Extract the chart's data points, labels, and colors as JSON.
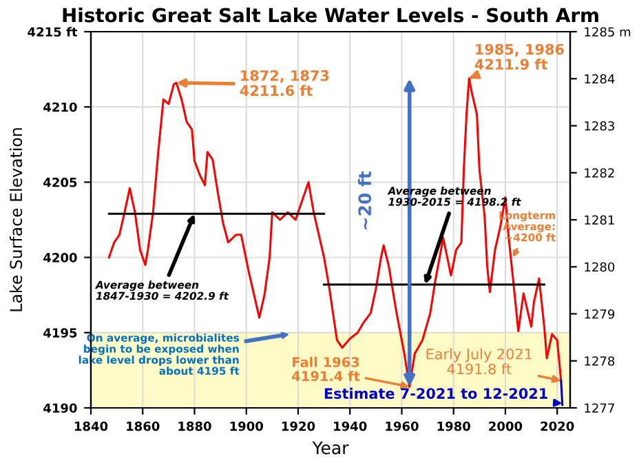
{
  "chart_data": {
    "type": "line",
    "title": "Historic Great Salt Lake Water Levels - South Arm",
    "xlabel": "Year",
    "ylabel": "Lake Surface Elevation",
    "xlim": [
      1840,
      2025
    ],
    "xticks": [
      1840,
      1860,
      1880,
      1900,
      1920,
      1940,
      1960,
      1980,
      2000,
      2020
    ],
    "ylim": [
      4190,
      4215
    ],
    "yticks": [
      4190,
      4195,
      4200,
      4205,
      4210,
      {
        "value": 4215,
        "label": "4215 ft"
      }
    ],
    "y2lim": [
      1277,
      1285
    ],
    "y2ticks": [
      1277,
      1278,
      1279,
      1280,
      1281,
      1282,
      1283,
      1284,
      {
        "value": 1285,
        "label": "1285 m"
      }
    ],
    "grid": true,
    "series": [
      {
        "color": "#ff0000",
        "x": [
          1847,
          1849,
          1851,
          1853,
          1855,
          1857,
          1859,
          1861,
          1862,
          1864,
          1866,
          1868,
          1870,
          1872,
          1873,
          1875,
          1877,
          1879,
          1880,
          1882,
          1884,
          1885,
          1887,
          1889,
          1891,
          1893,
          1896,
          1898,
          1901,
          1903,
          1905,
          1907,
          1909,
          1910,
          1913,
          1916,
          1919,
          1922,
          1924,
          1926,
          1928,
          1930,
          1932,
          1935,
          1937,
          1940,
          1943,
          1945,
          1948,
          1950,
          1952,
          1953,
          1955,
          1958,
          1961,
          1963,
          1965,
          1968,
          1971,
          1973,
          1976,
          1979,
          1981,
          1983,
          1984,
          1985,
          1986,
          1987,
          1989,
          1990,
          1992,
          1993,
          1994,
          1996,
          1998,
          2000,
          2001,
          2003,
          2005,
          2007,
          2010,
          2011,
          2013,
          2015,
          2016,
          2018,
          2020,
          2021.5
        ],
        "values": [
          4200,
          4201,
          4201.5,
          4203,
          4204.6,
          4203,
          4200.5,
          4199.5,
          4200.5,
          4203,
          4207,
          4210.5,
          4210.2,
          4211.5,
          4211.6,
          4210.5,
          4209,
          4208.5,
          4206.4,
          4205.5,
          4204.8,
          4207,
          4206.5,
          4204.3,
          4202.3,
          4201,
          4201.5,
          4201.5,
          4199,
          4197.5,
          4196,
          4197.5,
          4200,
          4203,
          4202.5,
          4203,
          4202.5,
          4204,
          4205,
          4203,
          4201.5,
          4200,
          4198,
          4194.5,
          4194,
          4194.6,
          4195,
          4195.6,
          4196.3,
          4197.9,
          4200,
          4200.8,
          4199.4,
          4196.3,
          4193.6,
          4191.4,
          4193.6,
          4194.5,
          4196.3,
          4198.5,
          4201.3,
          4198.8,
          4200.5,
          4201,
          4206,
          4209.5,
          4211.9,
          4211,
          4209.5,
          4205.8,
          4202.7,
          4199.4,
          4197.7,
          4200.5,
          4202,
          4204,
          4201.8,
          4198.5,
          4195.1,
          4197.6,
          4195.4,
          4197,
          4198.6,
          4195.4,
          4193.3,
          4194.9,
          4194.5,
          4191.8
        ]
      },
      {
        "color": "#0000cc",
        "x": [
          2021.5,
          2022
        ],
        "values": [
          4191.8,
          4190.2
        ]
      },
      {
        "color": "#000000",
        "x": [
          1847,
          1930
        ],
        "values": [
          4202.9,
          4202.9
        ]
      },
      {
        "color": "#000000",
        "x": [
          1930,
          2015
        ],
        "values": [
          4198.2,
          4198.2
        ]
      }
    ],
    "bands": [
      {
        "axis": "y",
        "from": 4190,
        "to": 4195,
        "color": "#fffbc7"
      }
    ],
    "annotations": [
      {
        "text": "1872, 1873\n4211.6 ft",
        "x": 1873,
        "y": 4211.6
      },
      {
        "text": "1985, 1986\n4211.9 ft",
        "x": 1986,
        "y": 4211.9
      },
      {
        "text": "Average between\n1847-1930 = 4202.9 ft",
        "x": 1880,
        "y": 4202.9
      },
      {
        "text": "Average between\n1930-2015 = 4198.2 ft",
        "x": 1969,
        "y": 4198.2
      },
      {
        "text": "Longterm\nAverage:\n~4200 ft",
        "x": 2003,
        "y": 4200
      },
      {
        "text": "Fall 1963\n4191.4 ft",
        "x": 1963,
        "y": 4191.4
      },
      {
        "text": "Early July 2021\n4191.8 ft",
        "x": 2021.5,
        "y": 4191.8
      },
      {
        "text": "Estimate 7-2021 to 12-2021",
        "x": 2022,
        "y": 4190.3
      },
      "On average, microbialites\nbegin to be exposed when\nlake level drops lower than\nabout 4195 ft",
      "~20 ft"
    ]
  }
}
